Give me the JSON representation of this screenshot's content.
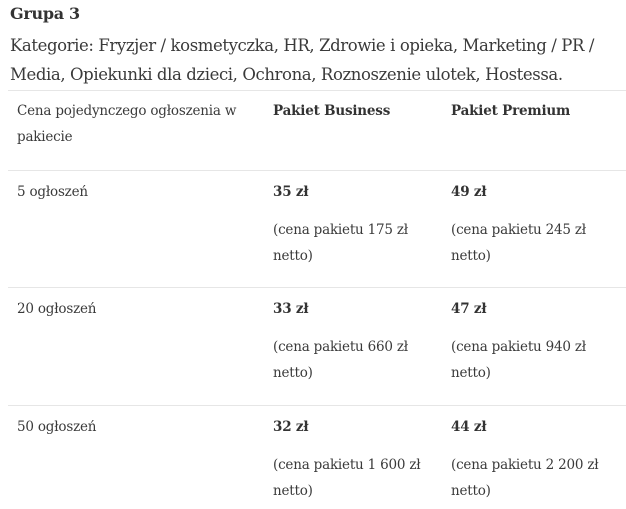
{
  "title": "Grupa 3",
  "categories_text": "Kategorie:  Fryzjer / kosmetyczka, HR, Zdrowie i opieka, Marketing / PR / Media, Opiekunki dla dzieci, Ochrona, Roznoszenie ulotek, Hostessa.",
  "table": {
    "headers": [
      "Cena pojedynczego ogłoszenia w pakiecie",
      "Pakiet Business",
      "Pakiet Premium"
    ],
    "rows": [
      {
        "label": "5 ogłoszeń",
        "business_price": "35 zł",
        "business_note": "(cena pakietu 175 zł netto)",
        "premium_price": "49 zł",
        "premium_note": "(cena pakietu 245 zł netto)"
      },
      {
        "label": "20 ogłoszeń",
        "business_price": "33 zł",
        "business_note": "(cena pakietu 660 zł netto)",
        "premium_price": "47 zł",
        "premium_note": "(cena pakietu 940 zł netto)"
      },
      {
        "label": "50 ogłoszeń",
        "business_price": "32 zł",
        "business_note": "(cena pakietu 1 600 zł netto)",
        "premium_price": "44 zł",
        "premium_note": "(cena pakietu 2 200 zł netto)"
      }
    ]
  }
}
